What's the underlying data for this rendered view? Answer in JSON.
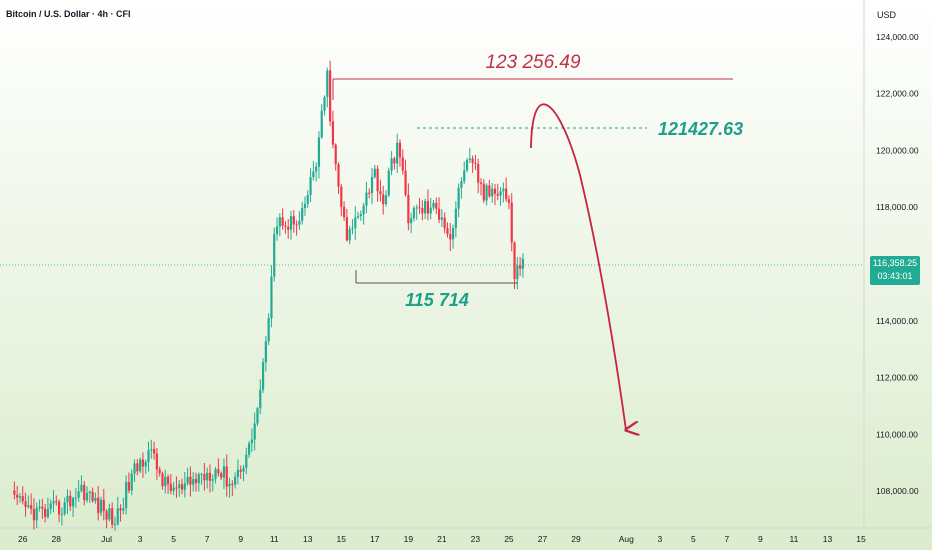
{
  "header": {
    "title": "Bitcoin / U.S. Dollar · 4h · CFI"
  },
  "price_axis": {
    "currency": "USD",
    "ticks": [
      "124,000.00",
      "122,000.00",
      "120,000.00",
      "118,000.00",
      "114,000.00",
      "112,000.00",
      "110,000.00",
      "108,000.00"
    ]
  },
  "current_price": {
    "value": "116,358.25",
    "countdown": "03:43:01"
  },
  "time_axis": {
    "labels": [
      "26",
      "28",
      "Jul",
      "3",
      "5",
      "7",
      "9",
      "11",
      "13",
      "15",
      "17",
      "19",
      "21",
      "23",
      "25",
      "27",
      "29",
      "Aug",
      "3",
      "5",
      "7",
      "9",
      "11",
      "13",
      "15"
    ]
  },
  "annotations": {
    "high": "123 256.49",
    "target": "121427.63",
    "support": "115 714"
  },
  "colors": {
    "up": "#22ab94",
    "down": "#f23645",
    "annotation_red": "#c1304a",
    "annotation_green": "#1f9f8a",
    "projection": "#c8243e"
  },
  "chart_data": {
    "type": "candlestick",
    "title": "Bitcoin / U.S. Dollar · 4h · CFI",
    "xlabel": "",
    "ylabel": "USD",
    "ylim": [
      106700,
      125300
    ],
    "grid": false,
    "x_range": [
      "Jun 25",
      "Aug 15"
    ],
    "levels": [
      {
        "label": "123 256.49",
        "value": 123256.49
      },
      {
        "label": "121427.63",
        "value": 121427.63
      },
      {
        "label": "115 714",
        "value": 115714
      }
    ],
    "projection": {
      "from": 120700,
      "peak": 122450,
      "to": 110100,
      "end_date": "Aug 1"
    },
    "anchors": [
      {
        "t": "Jun 25 12:00",
        "p": 107600
      },
      {
        "t": "Jun 26 12:00",
        "p": 107300
      },
      {
        "t": "Jun 27 12:00",
        "p": 107200
      },
      {
        "t": "Jun 28 12:00",
        "p": 107500
      },
      {
        "t": "Jun 29 12:00",
        "p": 108100
      },
      {
        "t": "Jun 30 12:00",
        "p": 107500
      },
      {
        "t": "Jul 1 12:00",
        "p": 106950
      },
      {
        "t": "Jul 2 12:00",
        "p": 108500
      },
      {
        "t": "Jul 3 12:00",
        "p": 109500
      },
      {
        "t": "Jul 4 12:00",
        "p": 108200
      },
      {
        "t": "Jul 5 12:00",
        "p": 108000
      },
      {
        "t": "Jul 6 12:00",
        "p": 108500
      },
      {
        "t": "Jul 7 12:00",
        "p": 108800
      },
      {
        "t": "Jul 8 12:00",
        "p": 108300
      },
      {
        "t": "Jul 9 12:00",
        "p": 109500
      },
      {
        "t": "Jul 10 00:00",
        "p": 110900
      },
      {
        "t": "Jul 10 12:00",
        "p": 113000
      },
      {
        "t": "Jul 11 00:00",
        "p": 117200
      },
      {
        "t": "Jul 11 12:00",
        "p": 117600
      },
      {
        "t": "Jul 12 12:00",
        "p": 117300
      },
      {
        "t": "Jul 13 12:00",
        "p": 119600
      },
      {
        "t": "Jul 14 04:00",
        "p": 122600
      },
      {
        "t": "Jul 14 12:00",
        "p": 120000
      },
      {
        "t": "Jul 15 08:00",
        "p": 116800
      },
      {
        "t": "Jul 16 00:00",
        "p": 117800
      },
      {
        "t": "Jul 17 00:00",
        "p": 119200
      },
      {
        "t": "Jul 17 12:00",
        "p": 118200
      },
      {
        "t": "Jul 18 08:00",
        "p": 120300
      },
      {
        "t": "Jul 19 00:00",
        "p": 117700
      },
      {
        "t": "Jul 20 00:00",
        "p": 118000
      },
      {
        "t": "Jul 21 00:00",
        "p": 117800
      },
      {
        "t": "Jul 21 12:00",
        "p": 116900
      },
      {
        "t": "Jul 22 08:00",
        "p": 119500
      },
      {
        "t": "Jul 23 00:00",
        "p": 119300
      },
      {
        "t": "Jul 23 12:00",
        "p": 118400
      },
      {
        "t": "Jul 24 12:00",
        "p": 118800
      },
      {
        "t": "Jul 25 00:00",
        "p": 118200
      },
      {
        "t": "Jul 25 08:00",
        "p": 115400
      },
      {
        "t": "Jul 25 20:00",
        "p": 116358
      }
    ]
  }
}
